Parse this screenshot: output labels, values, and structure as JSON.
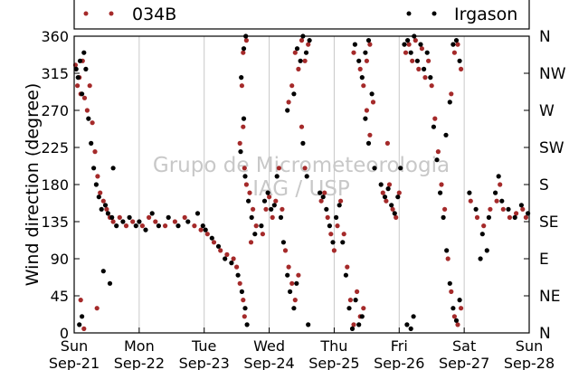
{
  "chart_data": {
    "type": "scatter",
    "title": "",
    "xlabel": "",
    "ylabel": "Wind direction (degree)",
    "ylim": [
      0,
      360
    ],
    "xlim": [
      0,
      7
    ],
    "yticks": [
      0,
      45,
      90,
      135,
      180,
      225,
      270,
      315,
      360
    ],
    "x_tick_labels": [
      {
        "x": 0,
        "day": "Sun",
        "date": "Sep-21"
      },
      {
        "x": 1,
        "day": "Mon",
        "date": "Sep-22"
      },
      {
        "x": 2,
        "day": "Tue",
        "date": "Sep-23"
      },
      {
        "x": 3,
        "day": "Wed",
        "date": "Sep-24"
      },
      {
        "x": 4,
        "day": "Thu",
        "date": "Sep-25"
      },
      {
        "x": 5,
        "day": "Fri",
        "date": "Sep-26"
      },
      {
        "x": 6,
        "day": "Sat",
        "date": "Sep-27"
      },
      {
        "x": 7,
        "day": "Sun",
        "date": "Sep-28"
      }
    ],
    "right_axis_labels": [
      {
        "y": 360,
        "label": "N"
      },
      {
        "y": 315,
        "label": "NW"
      },
      {
        "y": 270,
        "label": "W"
      },
      {
        "y": 225,
        "label": "SW"
      },
      {
        "y": 180,
        "label": "S"
      },
      {
        "y": 135,
        "label": "SE"
      },
      {
        "y": 90,
        "label": "E"
      },
      {
        "y": 45,
        "label": "NE"
      },
      {
        "y": 0,
        "label": "N"
      }
    ],
    "watermark": [
      "Grupo de Micrometeorologia",
      "IAG / USP"
    ],
    "grid": "vertical lines at day boundaries",
    "legend_placement": "top, outside plot",
    "series": [
      {
        "name": "034B",
        "color": "#a52a2a",
        "points": [
          [
            0.02,
            325
          ],
          [
            0.05,
            300
          ],
          [
            0.08,
            310
          ],
          [
            0.1,
            290
          ],
          [
            0.13,
            330
          ],
          [
            0.16,
            285
          ],
          [
            0.2,
            270
          ],
          [
            0.24,
            300
          ],
          [
            0.28,
            255
          ],
          [
            0.32,
            220
          ],
          [
            0.36,
            190
          ],
          [
            0.4,
            170
          ],
          [
            0.45,
            160
          ],
          [
            0.5,
            150
          ],
          [
            0.55,
            140
          ],
          [
            0.6,
            135
          ],
          [
            0.7,
            140
          ],
          [
            0.8,
            130
          ],
          [
            0.9,
            135
          ],
          [
            0.35,
            30
          ],
          [
            0.1,
            40
          ],
          [
            0.15,
            5
          ],
          [
            1.05,
            130
          ],
          [
            1.15,
            140
          ],
          [
            1.25,
            135
          ],
          [
            1.4,
            130
          ],
          [
            1.55,
            135
          ],
          [
            1.7,
            140
          ],
          [
            1.85,
            130
          ],
          [
            1.95,
            125
          ],
          [
            2.05,
            120
          ],
          [
            2.15,
            110
          ],
          [
            2.25,
            100
          ],
          [
            2.35,
            95
          ],
          [
            2.45,
            90
          ],
          [
            2.5,
            80
          ],
          [
            2.55,
            60
          ],
          [
            2.6,
            40
          ],
          [
            2.62,
            20
          ],
          [
            2.6,
            340
          ],
          [
            2.65,
            355
          ],
          [
            2.58,
            300
          ],
          [
            2.6,
            250
          ],
          [
            2.55,
            230
          ],
          [
            2.62,
            200
          ],
          [
            2.65,
            180
          ],
          [
            2.7,
            170
          ],
          [
            2.75,
            150
          ],
          [
            2.8,
            130
          ],
          [
            2.72,
            110
          ],
          [
            2.9,
            120
          ],
          [
            2.95,
            150
          ],
          [
            3.0,
            165
          ],
          [
            3.05,
            140
          ],
          [
            3.1,
            160
          ],
          [
            3.15,
            200
          ],
          [
            3.2,
            150
          ],
          [
            3.25,
            100
          ],
          [
            3.3,
            80
          ],
          [
            3.35,
            60
          ],
          [
            3.4,
            40
          ],
          [
            3.45,
            70
          ],
          [
            3.4,
            340
          ],
          [
            3.45,
            320
          ],
          [
            3.5,
            355
          ],
          [
            3.55,
            330
          ],
          [
            3.6,
            350
          ],
          [
            3.5,
            250
          ],
          [
            3.55,
            200
          ],
          [
            3.3,
            280
          ],
          [
            3.35,
            300
          ],
          [
            3.8,
            160
          ],
          [
            3.85,
            170
          ],
          [
            3.9,
            140
          ],
          [
            3.95,
            120
          ],
          [
            4.0,
            100
          ],
          [
            4.05,
            130
          ],
          [
            4.1,
            160
          ],
          [
            4.15,
            120
          ],
          [
            4.2,
            80
          ],
          [
            4.25,
            40
          ],
          [
            4.3,
            10
          ],
          [
            4.35,
            50
          ],
          [
            4.4,
            20
          ],
          [
            4.45,
            30
          ],
          [
            4.3,
            340
          ],
          [
            4.4,
            320
          ],
          [
            4.45,
            300
          ],
          [
            4.5,
            330
          ],
          [
            4.55,
            350
          ],
          [
            4.5,
            270
          ],
          [
            4.55,
            240
          ],
          [
            4.6,
            280
          ],
          [
            4.75,
            170
          ],
          [
            4.8,
            160
          ],
          [
            4.85,
            180
          ],
          [
            4.9,
            150
          ],
          [
            4.95,
            140
          ],
          [
            5.0,
            170
          ],
          [
            4.82,
            230
          ],
          [
            5.1,
            340
          ],
          [
            5.15,
            350
          ],
          [
            5.2,
            330
          ],
          [
            5.25,
            355
          ],
          [
            5.3,
            320
          ],
          [
            5.35,
            345
          ],
          [
            5.4,
            310
          ],
          [
            5.45,
            330
          ],
          [
            5.5,
            300
          ],
          [
            5.55,
            260
          ],
          [
            5.6,
            220
          ],
          [
            5.65,
            180
          ],
          [
            5.7,
            150
          ],
          [
            5.75,
            90
          ],
          [
            5.8,
            50
          ],
          [
            5.85,
            20
          ],
          [
            5.9,
            10
          ],
          [
            5.95,
            30
          ],
          [
            5.85,
            340
          ],
          [
            5.9,
            350
          ],
          [
            5.95,
            320
          ],
          [
            5.8,
            290
          ],
          [
            6.1,
            160
          ],
          [
            6.2,
            140
          ],
          [
            6.3,
            130
          ],
          [
            6.4,
            150
          ],
          [
            6.5,
            160
          ],
          [
            6.55,
            180
          ],
          [
            6.6,
            150
          ],
          [
            6.7,
            140
          ],
          [
            6.8,
            145
          ],
          [
            6.9,
            150
          ],
          [
            6.95,
            140
          ]
        ]
      },
      {
        "name": "Irgason",
        "color": "#000000",
        "points": [
          [
            0.03,
            320
          ],
          [
            0.06,
            310
          ],
          [
            0.09,
            330
          ],
          [
            0.12,
            290
          ],
          [
            0.15,
            340
          ],
          [
            0.18,
            320
          ],
          [
            0.22,
            260
          ],
          [
            0.26,
            230
          ],
          [
            0.3,
            200
          ],
          [
            0.34,
            180
          ],
          [
            0.38,
            165
          ],
          [
            0.42,
            150
          ],
          [
            0.48,
            155
          ],
          [
            0.52,
            145
          ],
          [
            0.58,
            140
          ],
          [
            0.65,
            130
          ],
          [
            0.75,
            135
          ],
          [
            0.85,
            140
          ],
          [
            0.95,
            130
          ],
          [
            0.08,
            10
          ],
          [
            0.12,
            20
          ],
          [
            0.45,
            75
          ],
          [
            0.55,
            60
          ],
          [
            0.6,
            200
          ],
          [
            1.0,
            135
          ],
          [
            1.1,
            125
          ],
          [
            1.2,
            145
          ],
          [
            1.3,
            130
          ],
          [
            1.45,
            140
          ],
          [
            1.6,
            130
          ],
          [
            1.75,
            135
          ],
          [
            1.9,
            145
          ],
          [
            1.98,
            130
          ],
          [
            2.02,
            125
          ],
          [
            2.12,
            115
          ],
          [
            2.22,
            105
          ],
          [
            2.32,
            90
          ],
          [
            2.42,
            85
          ],
          [
            2.52,
            70
          ],
          [
            2.58,
            50
          ],
          [
            2.63,
            30
          ],
          [
            2.66,
            10
          ],
          [
            2.61,
            345
          ],
          [
            2.64,
            360
          ],
          [
            2.57,
            310
          ],
          [
            2.61,
            260
          ],
          [
            2.56,
            220
          ],
          [
            2.63,
            190
          ],
          [
            2.68,
            160
          ],
          [
            2.73,
            140
          ],
          [
            2.78,
            120
          ],
          [
            2.88,
            130
          ],
          [
            2.93,
            160
          ],
          [
            2.98,
            170
          ],
          [
            3.03,
            150
          ],
          [
            3.08,
            155
          ],
          [
            3.12,
            190
          ],
          [
            3.18,
            140
          ],
          [
            3.22,
            110
          ],
          [
            3.28,
            70
          ],
          [
            3.32,
            50
          ],
          [
            3.38,
            30
          ],
          [
            3.42,
            60
          ],
          [
            3.43,
            345
          ],
          [
            3.48,
            330
          ],
          [
            3.52,
            360
          ],
          [
            3.57,
            340
          ],
          [
            3.62,
            355
          ],
          [
            3.52,
            230
          ],
          [
            3.58,
            190
          ],
          [
            3.28,
            270
          ],
          [
            3.38,
            290
          ],
          [
            3.6,
            10
          ],
          [
            3.78,
            170
          ],
          [
            3.83,
            165
          ],
          [
            3.88,
            150
          ],
          [
            3.93,
            130
          ],
          [
            3.98,
            110
          ],
          [
            4.03,
            140
          ],
          [
            4.08,
            155
          ],
          [
            4.13,
            110
          ],
          [
            4.18,
            70
          ],
          [
            4.23,
            30
          ],
          [
            4.28,
            5
          ],
          [
            4.33,
            40
          ],
          [
            4.38,
            10
          ],
          [
            4.43,
            20
          ],
          [
            4.32,
            350
          ],
          [
            4.38,
            330
          ],
          [
            4.43,
            310
          ],
          [
            4.48,
            340
          ],
          [
            4.53,
            355
          ],
          [
            4.48,
            260
          ],
          [
            4.53,
            230
          ],
          [
            4.58,
            290
          ],
          [
            4.62,
            200
          ],
          [
            4.72,
            180
          ],
          [
            4.78,
            165
          ],
          [
            4.83,
            175
          ],
          [
            4.88,
            155
          ],
          [
            4.93,
            145
          ],
          [
            4.98,
            165
          ],
          [
            5.02,
            200
          ],
          [
            5.08,
            350
          ],
          [
            5.13,
            355
          ],
          [
            5.18,
            340
          ],
          [
            5.23,
            360
          ],
          [
            5.28,
            330
          ],
          [
            5.33,
            350
          ],
          [
            5.38,
            320
          ],
          [
            5.43,
            340
          ],
          [
            5.48,
            310
          ],
          [
            5.53,
            250
          ],
          [
            5.58,
            210
          ],
          [
            5.63,
            170
          ],
          [
            5.68,
            140
          ],
          [
            5.12,
            10
          ],
          [
            5.18,
            5
          ],
          [
            5.22,
            20
          ],
          [
            5.73,
            100
          ],
          [
            5.78,
            60
          ],
          [
            5.83,
            30
          ],
          [
            5.88,
            15
          ],
          [
            5.93,
            40
          ],
          [
            5.83,
            350
          ],
          [
            5.88,
            355
          ],
          [
            5.93,
            330
          ],
          [
            5.78,
            280
          ],
          [
            5.72,
            240
          ],
          [
            6.08,
            170
          ],
          [
            6.18,
            150
          ],
          [
            6.28,
            120
          ],
          [
            6.38,
            140
          ],
          [
            6.48,
            170
          ],
          [
            6.53,
            190
          ],
          [
            6.58,
            160
          ],
          [
            6.68,
            150
          ],
          [
            6.78,
            140
          ],
          [
            6.88,
            155
          ],
          [
            6.98,
            145
          ],
          [
            6.25,
            90
          ],
          [
            6.35,
            100
          ]
        ]
      }
    ]
  }
}
